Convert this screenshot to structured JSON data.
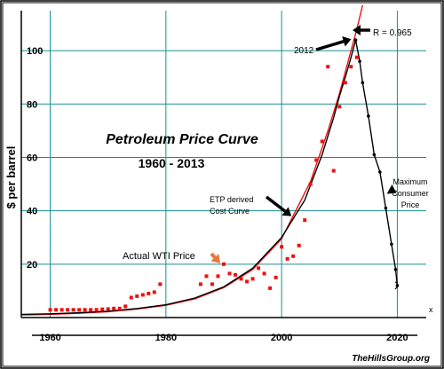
{
  "chart_data": {
    "type": "scatter",
    "title": "Petroleum Price Curve",
    "subtitle": "1960 - 2013",
    "ylabel": "$ per barrel",
    "x_end_label": "x",
    "xlim": [
      1955,
      2025
    ],
    "ylim": [
      0,
      115
    ],
    "x_ticks": [
      1960,
      1980,
      2000,
      2020
    ],
    "x_tick_labels": [
      "1960",
      "1980",
      "2000",
      "2020"
    ],
    "y_ticks": [
      20,
      40,
      60,
      80,
      100
    ],
    "y_tick_labels": [
      "20",
      "40",
      "60",
      "80",
      "100"
    ],
    "grid": true,
    "series": [
      {
        "name": "Actual WTI Price",
        "kind": "scatter",
        "color": "#ee1111",
        "points": [
          [
            1960,
            2.9
          ],
          [
            1961,
            2.9
          ],
          [
            1962,
            2.9
          ],
          [
            1963,
            2.9
          ],
          [
            1964,
            2.9
          ],
          [
            1965,
            2.9
          ],
          [
            1966,
            2.9
          ],
          [
            1967,
            2.9
          ],
          [
            1968,
            2.9
          ],
          [
            1969,
            3.1
          ],
          [
            1970,
            3.2
          ],
          [
            1971,
            3.4
          ],
          [
            1972,
            3.4
          ],
          [
            1973,
            4.2
          ],
          [
            1974,
            7.5
          ],
          [
            1975,
            8.0
          ],
          [
            1976,
            8.5
          ],
          [
            1977,
            9.0
          ],
          [
            1978,
            9.5
          ],
          [
            1979,
            12.5
          ],
          [
            1986,
            12.5
          ],
          [
            1987,
            15.5
          ],
          [
            1988,
            12.5
          ],
          [
            1989,
            15.5
          ],
          [
            1990,
            20.0
          ],
          [
            1991,
            16.5
          ],
          [
            1992,
            16.0
          ],
          [
            1993,
            14.5
          ],
          [
            1994,
            13.5
          ],
          [
            1995,
            14.5
          ],
          [
            1996,
            18.5
          ],
          [
            1997,
            16.5
          ],
          [
            1998,
            11.0
          ],
          [
            1999,
            15.0
          ],
          [
            2000,
            26.5
          ],
          [
            2001,
            22.0
          ],
          [
            2002,
            23.0
          ],
          [
            2003,
            27.0
          ],
          [
            2004,
            36.5
          ],
          [
            2005,
            50.0
          ],
          [
            2006,
            59.0
          ],
          [
            2007,
            66.0
          ],
          [
            2008,
            94.0
          ],
          [
            2009,
            55.0
          ],
          [
            2010,
            79.0
          ],
          [
            2011,
            88.0
          ],
          [
            2012,
            94.0
          ],
          [
            2013,
            97.5
          ]
        ]
      },
      {
        "name": "ETP derived Cost Curve",
        "kind": "curve",
        "color": "#000000",
        "points": [
          [
            1955,
            1.2
          ],
          [
            1960,
            1.4
          ],
          [
            1965,
            1.8
          ],
          [
            1970,
            2.4
          ],
          [
            1975,
            3.4
          ],
          [
            1980,
            4.8
          ],
          [
            1985,
            7.3
          ],
          [
            1990,
            11.5
          ],
          [
            1995,
            18.5
          ],
          [
            2000,
            30.0
          ],
          [
            2004,
            44.0
          ],
          [
            2007,
            61.0
          ],
          [
            2009,
            75.0
          ],
          [
            2010,
            83.0
          ],
          [
            2011,
            90.0
          ],
          [
            2012,
            97.5
          ],
          [
            2012.8,
            104.0
          ]
        ]
      },
      {
        "name": "R = 0.965",
        "kind": "curve",
        "color": "#ee1111",
        "points": [
          [
            1955,
            1.0
          ],
          [
            1960,
            1.2
          ],
          [
            1965,
            1.6
          ],
          [
            1970,
            2.2
          ],
          [
            1975,
            3.2
          ],
          [
            1980,
            4.6
          ],
          [
            1985,
            7.0
          ],
          [
            1990,
            11.2
          ],
          [
            1995,
            18.0
          ],
          [
            2000,
            29.5
          ],
          [
            2005,
            51.0
          ],
          [
            2008,
            70.0
          ],
          [
            2010,
            84.0
          ],
          [
            2012,
            100.0
          ],
          [
            2013,
            108.0
          ],
          [
            2014,
            117.0
          ]
        ]
      },
      {
        "name": "Maximum Consumer Price",
        "kind": "curve_with_markers",
        "color": "#000000",
        "points": [
          [
            2012.8,
            104.0
          ],
          [
            2013.5,
            96.0
          ],
          [
            2014,
            88.0
          ],
          [
            2015,
            75.5
          ],
          [
            2016,
            61.0
          ],
          [
            2017,
            54.5
          ],
          [
            2018,
            41.0
          ],
          [
            2019,
            27.5
          ],
          [
            2019.7,
            18.0
          ],
          [
            2020,
            12.0
          ]
        ]
      }
    ],
    "annotations": [
      {
        "text": "2012",
        "x": 2012.8,
        "y": 104.0,
        "arrow_color": "#000000"
      },
      {
        "text": "R = 0.965",
        "x": 2014,
        "y": 112.0,
        "arrow_color": "#000000"
      },
      {
        "text": "ETP derived",
        "line2": "Cost Curve",
        "x": 2002,
        "y": 39.0,
        "arrow_color": "#000000"
      },
      {
        "text": "Actual WTI Price",
        "x": 1990,
        "y": 20.0,
        "arrow_color": "#e8773a"
      },
      {
        "text": "Maximum",
        "line2": "Consumer",
        "line3": "Price",
        "x": 2020,
        "y": 48.0,
        "arrow_color": "#000000"
      }
    ]
  },
  "footer": {
    "credit": "TheHillsGroup.org"
  }
}
